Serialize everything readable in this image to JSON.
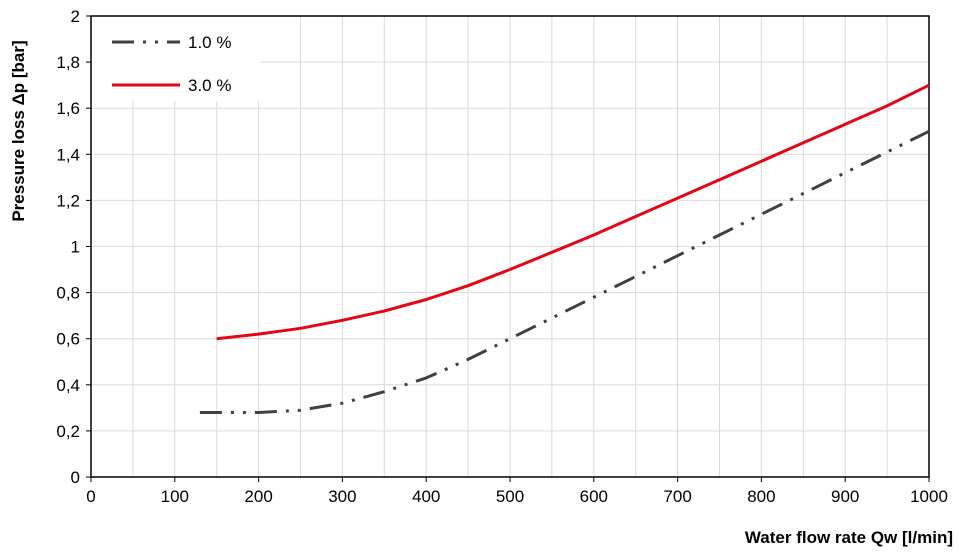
{
  "chart_data": {
    "type": "line",
    "title": "",
    "xlabel": "Water flow rate Qw [l/min]",
    "ylabel": "Pressure loss Δp [bar]",
    "xlim": [
      0,
      1000
    ],
    "ylim": [
      0,
      2
    ],
    "x_ticks": [
      "0",
      "100",
      "200",
      "300",
      "400",
      "500",
      "600",
      "700",
      "800",
      "900",
      "1000"
    ],
    "y_ticks": [
      "0",
      "0,2",
      "0,4",
      "0,6",
      "0,8",
      "1",
      "1,2",
      "1,4",
      "1,6",
      "1,8",
      "2"
    ],
    "x_tick_values": [
      0,
      100,
      200,
      300,
      400,
      500,
      600,
      700,
      800,
      900,
      1000
    ],
    "y_tick_values": [
      0,
      0.2,
      0.4,
      0.6,
      0.8,
      1.0,
      1.2,
      1.4,
      1.6,
      1.8,
      2.0
    ],
    "grid": true,
    "legend_position": "top-left",
    "series": [
      {
        "name": "1.0 %",
        "color": "#404040",
        "line_style": "dash-dot-dot",
        "x": [
          130,
          150,
          200,
          250,
          300,
          350,
          400,
          450,
          500,
          550,
          600,
          650,
          700,
          750,
          800,
          850,
          900,
          950,
          1000
        ],
        "y": [
          0.28,
          0.28,
          0.28,
          0.29,
          0.32,
          0.37,
          0.43,
          0.51,
          0.6,
          0.69,
          0.78,
          0.87,
          0.96,
          1.05,
          1.14,
          1.23,
          1.32,
          1.41,
          1.5
        ]
      },
      {
        "name": "3.0 %",
        "color": "#e30613",
        "line_style": "solid",
        "x": [
          150,
          200,
          250,
          300,
          350,
          400,
          450,
          500,
          550,
          600,
          650,
          700,
          750,
          800,
          850,
          900,
          950,
          1000
        ],
        "y": [
          0.6,
          0.62,
          0.645,
          0.68,
          0.72,
          0.77,
          0.83,
          0.9,
          0.975,
          1.05,
          1.13,
          1.21,
          1.29,
          1.37,
          1.45,
          1.53,
          1.61,
          1.7
        ]
      }
    ]
  }
}
